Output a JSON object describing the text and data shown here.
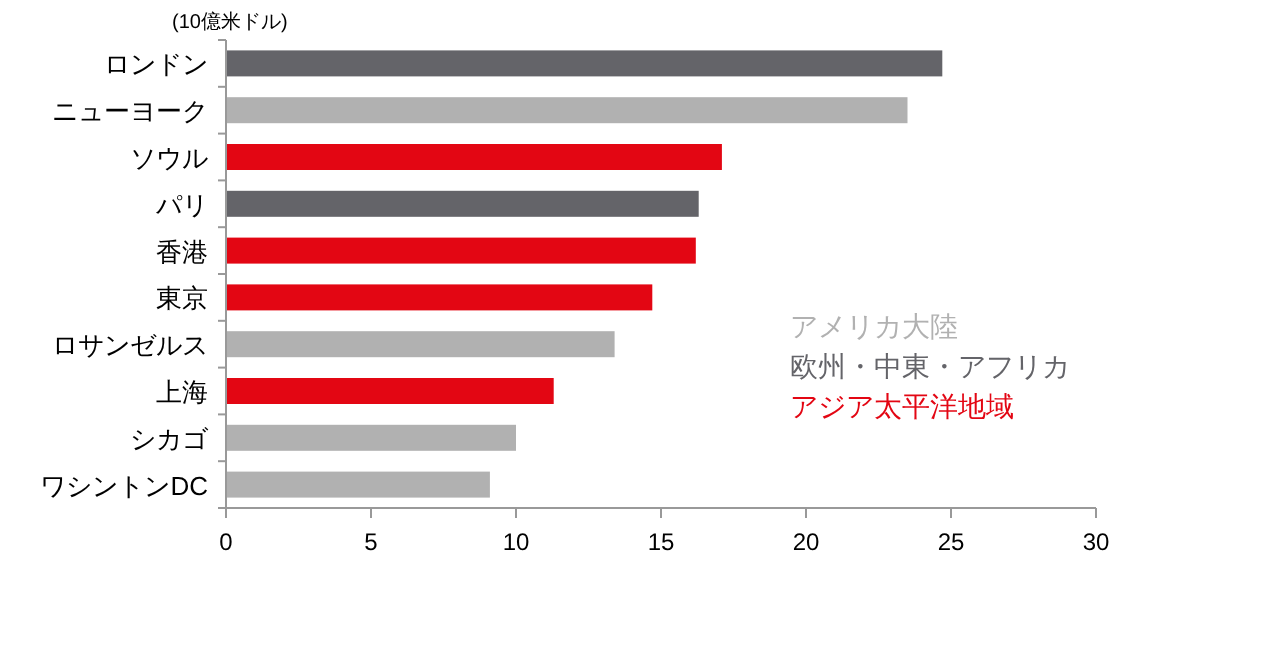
{
  "chart_data": {
    "type": "bar",
    "orientation": "horizontal",
    "subtitle": "(10億米ドル)",
    "categories": [
      "ロンドン",
      "ニューヨーク",
      "ソウル",
      "パリ",
      "香港",
      "東京",
      "ロサンゼルス",
      "上海",
      "シカゴ",
      "ワシントンDC"
    ],
    "series": [
      {
        "name": "アメリカ大陸",
        "color": "#b1b1b1",
        "values": [
          null,
          23.5,
          null,
          null,
          null,
          null,
          13.4,
          null,
          10.0,
          9.1
        ]
      },
      {
        "name": "欧州・中東・アフリカ",
        "color": "#646469",
        "values": [
          24.7,
          null,
          null,
          16.3,
          null,
          null,
          null,
          null,
          null,
          null
        ]
      },
      {
        "name": "アジア太平洋地域",
        "color": "#e30613",
        "values": [
          null,
          null,
          17.1,
          null,
          16.2,
          14.7,
          null,
          11.3,
          null,
          null
        ]
      }
    ],
    "xlim": [
      0,
      30
    ],
    "xticks": [
      0,
      5,
      10,
      15,
      20,
      25,
      30
    ],
    "legend": "right",
    "grid": false
  }
}
